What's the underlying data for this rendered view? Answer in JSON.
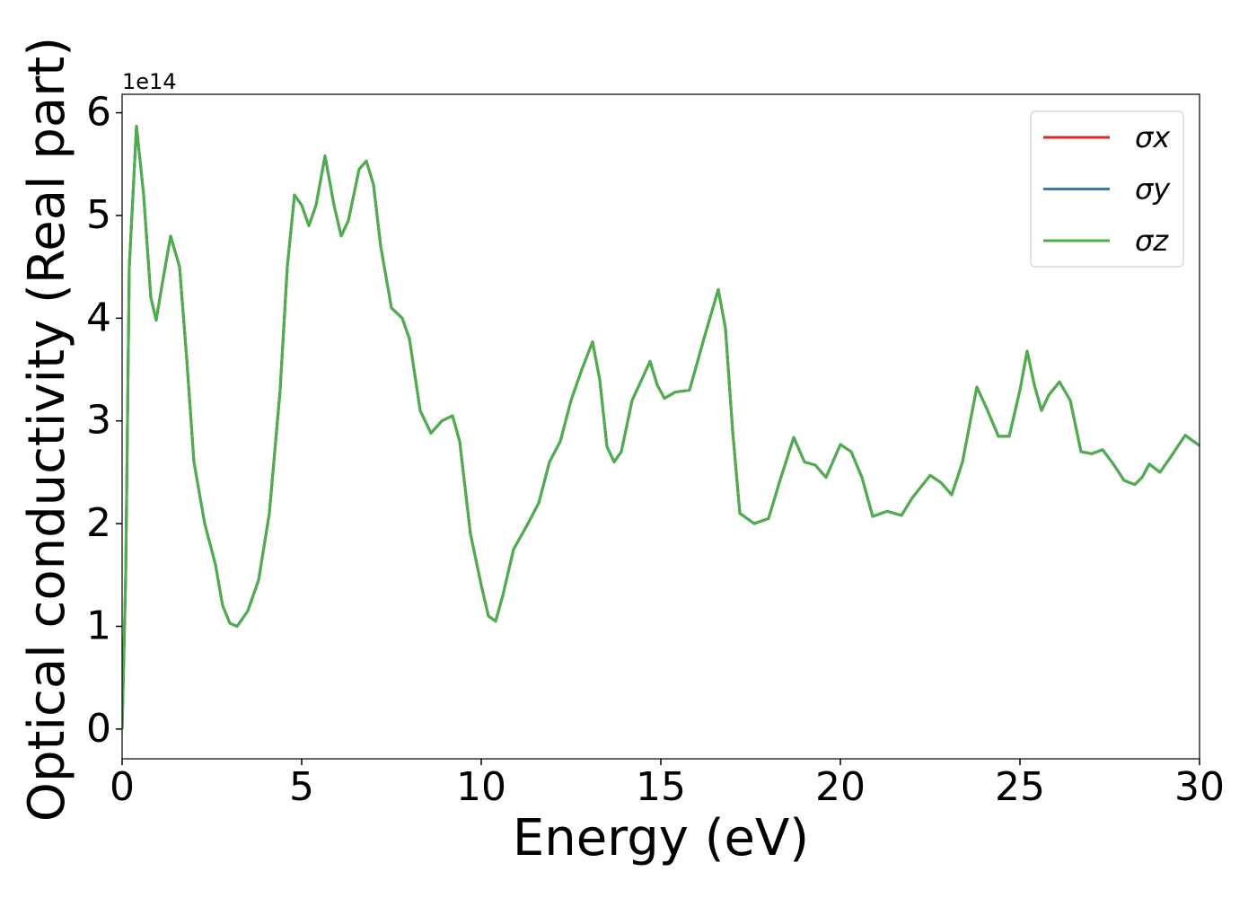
{
  "chart_data": {
    "type": "line",
    "xlabel": "Energy (eV)",
    "ylabel": "Optical conductivity (Real part)",
    "y_offset_label": "1e14",
    "xlim": [
      0,
      30
    ],
    "ylim": [
      -0.29,
      6.18
    ],
    "xticks": [
      0,
      5,
      10,
      15,
      20,
      25,
      30
    ],
    "yticks": [
      0,
      1,
      2,
      3,
      4,
      5,
      6
    ],
    "legend_position": "upper right",
    "x": [
      0,
      0.1,
      0.2,
      0.4,
      0.6,
      0.8,
      0.95,
      1.1,
      1.35,
      1.6,
      1.8,
      2.0,
      2.3,
      2.6,
      2.8,
      3.0,
      3.2,
      3.5,
      3.8,
      4.1,
      4.4,
      4.6,
      4.8,
      5.0,
      5.2,
      5.4,
      5.65,
      5.9,
      6.1,
      6.3,
      6.6,
      6.8,
      7.0,
      7.2,
      7.5,
      7.8,
      8.0,
      8.3,
      8.6,
      8.9,
      9.2,
      9.4,
      9.7,
      10.0,
      10.2,
      10.4,
      10.6,
      10.9,
      11.3,
      11.6,
      11.9,
      12.2,
      12.5,
      12.8,
      13.1,
      13.3,
      13.5,
      13.7,
      13.9,
      14.2,
      14.4,
      14.7,
      14.9,
      15.1,
      15.4,
      15.8,
      16.2,
      16.6,
      16.8,
      17.0,
      17.2,
      17.6,
      18.0,
      18.3,
      18.7,
      19.0,
      19.3,
      19.6,
      20.0,
      20.3,
      20.6,
      20.9,
      21.3,
      21.7,
      22.0,
      22.5,
      22.8,
      23.1,
      23.4,
      23.8,
      24.1,
      24.4,
      24.7,
      25.0,
      25.2,
      25.4,
      25.6,
      25.8,
      26.1,
      26.4,
      26.7,
      27.0,
      27.3,
      27.6,
      27.9,
      28.2,
      28.4,
      28.6,
      28.9,
      29.2,
      29.6,
      30.0
    ],
    "series": [
      {
        "name": "σx",
        "color": "#d62728",
        "values": [
          0,
          1.5,
          4.5,
          5.87,
          5.2,
          4.2,
          3.98,
          4.3,
          4.8,
          4.5,
          3.6,
          2.6,
          2.0,
          1.6,
          1.2,
          1.03,
          1.0,
          1.15,
          1.45,
          2.1,
          3.3,
          4.5,
          5.2,
          5.1,
          4.9,
          5.1,
          5.58,
          5.1,
          4.8,
          4.95,
          5.45,
          5.53,
          5.3,
          4.7,
          4.1,
          4.0,
          3.8,
          3.1,
          2.88,
          3.0,
          3.05,
          2.8,
          1.9,
          1.4,
          1.1,
          1.05,
          1.3,
          1.75,
          2.0,
          2.2,
          2.6,
          2.8,
          3.2,
          3.5,
          3.77,
          3.4,
          2.75,
          2.6,
          2.7,
          3.2,
          3.35,
          3.58,
          3.35,
          3.22,
          3.28,
          3.3,
          3.8,
          4.28,
          3.9,
          2.9,
          2.1,
          2.0,
          2.05,
          2.4,
          2.84,
          2.6,
          2.57,
          2.45,
          2.77,
          2.7,
          2.45,
          2.07,
          2.12,
          2.08,
          2.25,
          2.47,
          2.4,
          2.28,
          2.6,
          3.33,
          3.1,
          2.85,
          2.85,
          3.3,
          3.68,
          3.35,
          3.1,
          3.25,
          3.38,
          3.2,
          2.7,
          2.68,
          2.72,
          2.58,
          2.42,
          2.38,
          2.45,
          2.58,
          2.5,
          2.65,
          2.86,
          2.76
        ]
      },
      {
        "name": "σy",
        "color": "#377eb8",
        "values": [
          0,
          1.5,
          4.5,
          5.87,
          5.2,
          4.2,
          3.98,
          4.3,
          4.8,
          4.5,
          3.6,
          2.6,
          2.0,
          1.6,
          1.2,
          1.03,
          1.0,
          1.15,
          1.45,
          2.1,
          3.3,
          4.5,
          5.2,
          5.1,
          4.9,
          5.1,
          5.58,
          5.1,
          4.8,
          4.95,
          5.45,
          5.53,
          5.3,
          4.7,
          4.1,
          4.0,
          3.8,
          3.1,
          2.88,
          3.0,
          3.05,
          2.8,
          1.9,
          1.4,
          1.1,
          1.05,
          1.3,
          1.75,
          2.0,
          2.2,
          2.6,
          2.8,
          3.2,
          3.5,
          3.77,
          3.4,
          2.75,
          2.6,
          2.7,
          3.2,
          3.35,
          3.58,
          3.35,
          3.22,
          3.28,
          3.3,
          3.8,
          4.28,
          3.9,
          2.9,
          2.1,
          2.0,
          2.05,
          2.4,
          2.84,
          2.6,
          2.57,
          2.45,
          2.77,
          2.7,
          2.45,
          2.07,
          2.12,
          2.08,
          2.25,
          2.47,
          2.4,
          2.28,
          2.6,
          3.33,
          3.1,
          2.85,
          2.85,
          3.3,
          3.68,
          3.35,
          3.1,
          3.25,
          3.38,
          3.2,
          2.7,
          2.68,
          2.72,
          2.58,
          2.42,
          2.38,
          2.45,
          2.58,
          2.5,
          2.65,
          2.86,
          2.76
        ]
      },
      {
        "name": "σz",
        "color": "#4daf4a",
        "values": [
          0,
          1.5,
          4.5,
          5.87,
          5.2,
          4.2,
          3.98,
          4.3,
          4.8,
          4.5,
          3.6,
          2.6,
          2.0,
          1.6,
          1.2,
          1.03,
          1.0,
          1.15,
          1.45,
          2.1,
          3.3,
          4.5,
          5.2,
          5.1,
          4.9,
          5.1,
          5.58,
          5.1,
          4.8,
          4.95,
          5.45,
          5.53,
          5.3,
          4.7,
          4.1,
          4.0,
          3.8,
          3.1,
          2.88,
          3.0,
          3.05,
          2.8,
          1.9,
          1.4,
          1.1,
          1.05,
          1.3,
          1.75,
          2.0,
          2.2,
          2.6,
          2.8,
          3.2,
          3.5,
          3.77,
          3.4,
          2.75,
          2.6,
          2.7,
          3.2,
          3.35,
          3.58,
          3.35,
          3.22,
          3.28,
          3.3,
          3.8,
          4.28,
          3.9,
          2.9,
          2.1,
          2.0,
          2.05,
          2.4,
          2.84,
          2.6,
          2.57,
          2.45,
          2.77,
          2.7,
          2.45,
          2.07,
          2.12,
          2.08,
          2.25,
          2.47,
          2.4,
          2.28,
          2.6,
          3.33,
          3.1,
          2.85,
          2.85,
          3.3,
          3.68,
          3.35,
          3.1,
          3.25,
          3.38,
          3.2,
          2.7,
          2.68,
          2.72,
          2.58,
          2.42,
          2.38,
          2.45,
          2.58,
          2.5,
          2.65,
          2.86,
          2.76
        ]
      }
    ]
  }
}
